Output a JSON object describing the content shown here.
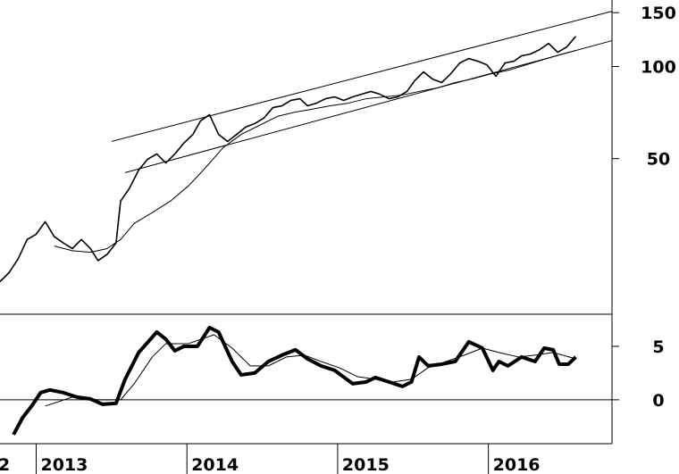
{
  "chart_data": [
    {
      "type": "line",
      "log_scale": true,
      "color": "#000000",
      "xlim": [
        2012.76,
        2016.82
      ],
      "ylim": [
        15.5,
        165
      ],
      "yticks": [
        50,
        100,
        150
      ],
      "series": [
        {
          "x": [
            2012.76,
            2012.82,
            2012.88,
            2012.94,
            2013.0,
            2013.06,
            2013.12,
            2013.18,
            2013.24,
            2013.3,
            2013.36,
            2013.41,
            2013.47,
            2013.53,
            2013.56,
            2013.62,
            2013.68,
            2013.74,
            2013.8,
            2013.86,
            2013.92,
            2013.98,
            2014.04,
            2014.09,
            2014.15,
            2014.21,
            2014.27,
            2014.33,
            2014.39,
            2014.45,
            2014.51,
            2014.57,
            2014.63,
            2014.69,
            2014.75,
            2014.8,
            2014.86,
            2014.92,
            2014.98,
            2015.04,
            2015.1,
            2015.16,
            2015.22,
            2015.28,
            2015.34,
            2015.4,
            2015.46,
            2015.51,
            2015.57,
            2015.63,
            2015.69,
            2015.75,
            2015.81,
            2015.87,
            2015.93,
            2015.99,
            2016.05,
            2016.11,
            2016.17,
            2016.22,
            2016.28,
            2016.34,
            2016.4,
            2016.46,
            2016.52,
            2016.58
          ],
          "values": [
            19.8,
            21.2,
            23.5,
            27.2,
            28.3,
            31.1,
            27.8,
            26.5,
            25.4,
            27.2,
            25.4,
            23.2,
            24.3,
            26.5,
            36.3,
            40.1,
            45.9,
            49.8,
            51.8,
            48.4,
            51.8,
            56.2,
            60.0,
            66.4,
            69.6,
            60.0,
            56.9,
            60.0,
            63.4,
            65.1,
            67.8,
            73.4,
            74.4,
            77.5,
            78.5,
            74.4,
            75.9,
            78.5,
            79.6,
            77.5,
            79.6,
            81.2,
            82.9,
            81.2,
            78.5,
            79.6,
            82.9,
            89.8,
            96.1,
            91.0,
            88.6,
            94.7,
            102.7,
            106.2,
            104.1,
            101.3,
            92.9,
            102.7,
            104.1,
            108.4,
            109.9,
            113.6,
            119.0,
            111.3,
            115.9,
            125.6
          ],
          "width": 1.6
        },
        {
          "x": [
            2013.12,
            2013.24,
            2013.36,
            2013.47,
            2013.56,
            2013.65,
            2013.77,
            2013.89,
            2014.01,
            2014.12,
            2014.24,
            2014.36,
            2014.48,
            2014.6,
            2014.72,
            2014.83,
            2014.95,
            2015.07,
            2015.19,
            2015.31,
            2015.43,
            2015.54,
            2015.66,
            2015.78,
            2015.89,
            2016.02,
            2016.14,
            2016.25,
            2016.37,
            2016.49,
            2016.58
          ],
          "values": [
            25.9,
            25.0,
            24.7,
            25.4,
            27.2,
            30.7,
            33.3,
            36.3,
            40.7,
            46.5,
            54.3,
            60.0,
            64.2,
            68.7,
            71.0,
            72.5,
            74.4,
            75.9,
            78.5,
            79.6,
            80.7,
            82.9,
            85.1,
            88.6,
            91.0,
            94.7,
            97.4,
            101.3,
            105.5,
            109.9,
            112.8
          ],
          "width": 1
        },
        {
          "x": [
            2013.5,
            2016.82
          ],
          "values": [
            56.9,
            151.6
          ],
          "width": 1
        },
        {
          "x": [
            2013.59,
            2016.82
          ],
          "values": [
            45.0,
            121.5
          ],
          "width": 1
        }
      ]
    },
    {
      "type": "line",
      "color": "#000000",
      "xlim": [
        2012.76,
        2016.82
      ],
      "ylim": [
        -4.1,
        8
      ],
      "yticks": [
        0,
        5
      ],
      "baseline": 0,
      "xticks": [
        {
          "value": 2012,
          "label": "2"
        },
        2013,
        2014,
        2015,
        2016
      ],
      "series": [
        {
          "x": [
            2012.85,
            2012.91,
            2012.97,
            2013.03,
            2013.09,
            2013.18,
            2013.27,
            2013.36,
            2013.44,
            2013.53,
            2013.59,
            2013.68,
            2013.8,
            2013.86,
            2013.92,
            2013.98,
            2014.07,
            2014.15,
            2014.21,
            2014.3,
            2014.36,
            2014.45,
            2014.54,
            2014.63,
            2014.72,
            2014.8,
            2014.89,
            2014.98,
            2015.1,
            2015.19,
            2015.25,
            2015.34,
            2015.43,
            2015.49,
            2015.54,
            2015.6,
            2015.69,
            2015.78,
            2015.87,
            2015.96,
            2016.03,
            2016.07,
            2016.13,
            2016.22,
            2016.31,
            2016.37,
            2016.43,
            2016.47,
            2016.53,
            2016.58
          ],
          "values": [
            -3.25,
            -1.67,
            -0.58,
            0.67,
            0.92,
            0.67,
            0.25,
            0.08,
            -0.42,
            -0.33,
            1.92,
            4.42,
            6.33,
            5.67,
            4.58,
            5.0,
            5.0,
            6.75,
            6.33,
            3.58,
            2.33,
            2.5,
            3.58,
            4.17,
            4.67,
            3.83,
            3.17,
            2.75,
            1.5,
            1.67,
            2.08,
            1.67,
            1.25,
            1.67,
            4.0,
            3.17,
            3.33,
            3.58,
            5.42,
            4.83,
            2.75,
            3.58,
            3.17,
            4.0,
            3.58,
            4.83,
            4.67,
            3.33,
            3.33,
            4.0
          ],
          "width": 4
        },
        {
          "x": [
            2013.06,
            2013.24,
            2013.41,
            2013.56,
            2013.65,
            2013.77,
            2013.86,
            2014.01,
            2014.18,
            2014.3,
            2014.42,
            2014.54,
            2014.66,
            2014.78,
            2014.89,
            2015.01,
            2015.13,
            2015.25,
            2015.37,
            2015.49,
            2015.6,
            2015.72,
            2015.84,
            2015.96,
            2016.07,
            2016.2,
            2016.31,
            2016.43,
            2016.58
          ],
          "values": [
            -0.58,
            0.25,
            0,
            0,
            1.5,
            4.0,
            5.25,
            5.25,
            6.08,
            4.83,
            3.17,
            3.17,
            4.0,
            4.17,
            3.58,
            3.0,
            2.17,
            1.92,
            1.67,
            1.92,
            3.0,
            3.58,
            4.17,
            4.83,
            4.42,
            4.0,
            4.17,
            4.42,
            3.83
          ],
          "width": 1
        }
      ]
    }
  ]
}
